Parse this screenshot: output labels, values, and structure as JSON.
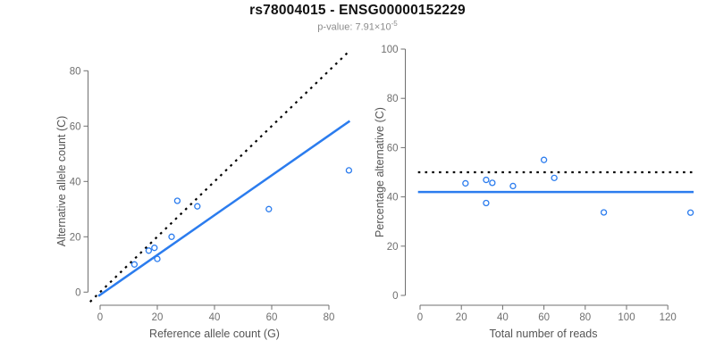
{
  "title": "rs78004015 - ENSG00000152229",
  "subtitle": {
    "prefix": "p-value: 7.91×10",
    "exponent": "-5"
  },
  "colors": {
    "accent_blue": "#2b7cee",
    "dotted_line_black": "#000000",
    "axis_gray": "#6f6f6f",
    "axis_title_gray": "#555555",
    "title_black": "#111111",
    "subtitle_gray": "#8c8c8c"
  },
  "chart_data": [
    {
      "type": "scatter",
      "panel": "left",
      "xlabel": "Reference allele count (G)",
      "ylabel": "Alternative allele count (C)",
      "x_ticks": [
        0,
        20,
        40,
        60,
        80
      ],
      "y_ticks": [
        0,
        20,
        40,
        60,
        80
      ],
      "xlim": [
        -4.5,
        88
      ],
      "ylim": [
        -4.8,
        87.5
      ],
      "grid": false,
      "legend": null,
      "points": [
        [
          12,
          10
        ],
        [
          17,
          15
        ],
        [
          19,
          16
        ],
        [
          20,
          12
        ],
        [
          25,
          20
        ],
        [
          27,
          33
        ],
        [
          34,
          31
        ],
        [
          59,
          30
        ],
        [
          87,
          44
        ]
      ],
      "lines": [
        {
          "name": "identity-line",
          "style": "dotted",
          "color": "black",
          "slope": 1,
          "intercept": 0,
          "x_range": [
            -3.5,
            88
          ]
        },
        {
          "name": "fit-line",
          "style": "solid",
          "color": "blue",
          "slope": 0.72,
          "intercept": -1,
          "x_range": [
            -0.6,
            87.3
          ]
        }
      ]
    },
    {
      "type": "scatter",
      "panel": "right",
      "xlabel": "Total number of reads",
      "ylabel": "Percentage alternative (C)",
      "x_ticks": [
        0,
        20,
        40,
        60,
        80,
        100,
        120
      ],
      "y_ticks": [
        0,
        20,
        40,
        60,
        80,
        100
      ],
      "xlim": [
        -1,
        132.5
      ],
      "ylim": [
        -4,
        104
      ],
      "grid": false,
      "legend": null,
      "points": [
        [
          22,
          45.5
        ],
        [
          32,
          46.9
        ],
        [
          35,
          45.7
        ],
        [
          32,
          37.5
        ],
        [
          45,
          44.4
        ],
        [
          60,
          55.0
        ],
        [
          65,
          47.7
        ],
        [
          89,
          33.7
        ],
        [
          131,
          33.6
        ]
      ],
      "lines": [
        {
          "name": "expected-50pct-line",
          "style": "dotted",
          "color": "black",
          "h": 50,
          "x_range": [
            -1,
            132.5
          ]
        },
        {
          "name": "observed-pct-line",
          "style": "solid",
          "color": "blue",
          "h": 42,
          "x_range": [
            -1,
            132.5
          ]
        }
      ]
    }
  ]
}
